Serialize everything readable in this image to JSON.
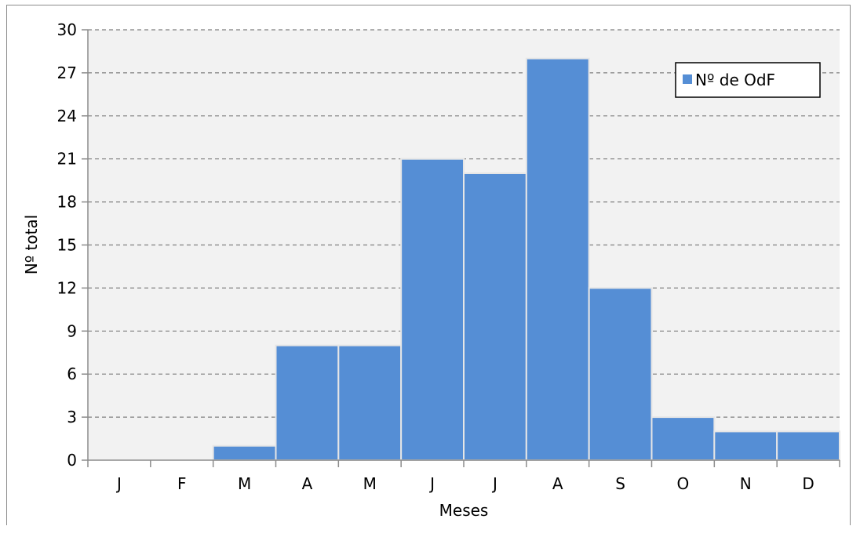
{
  "chart_data": {
    "type": "bar",
    "title": "",
    "xlabel": "Meses",
    "ylabel": "Nº total",
    "categories": [
      "J",
      "F",
      "M",
      "A",
      "M",
      "J",
      "J",
      "A",
      "S",
      "O",
      "N",
      "D"
    ],
    "series": [
      {
        "name": "Nº de OdF",
        "values": [
          0,
          0,
          1,
          8,
          8,
          21,
          20,
          28,
          12,
          3,
          2,
          2
        ],
        "color": "#558ed5"
      }
    ],
    "ylim": [
      0,
      30
    ],
    "yticks": [
      0,
      3,
      6,
      9,
      12,
      15,
      18,
      21,
      24,
      27,
      30
    ],
    "grid": true,
    "grid_style": "dashed",
    "legend_position": "top-right",
    "plot_background": "#f2f2f2",
    "bar_edge_color": "#e6e6e6"
  }
}
